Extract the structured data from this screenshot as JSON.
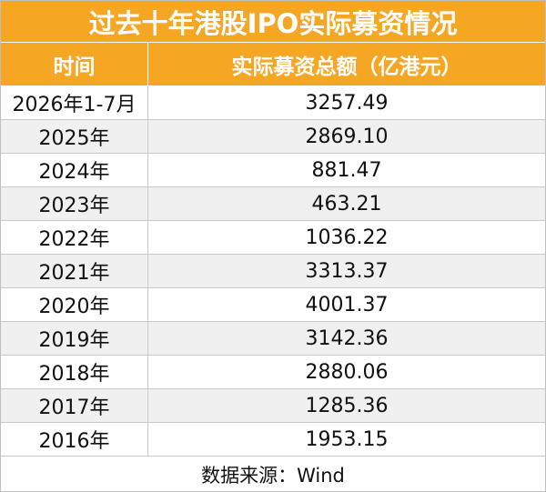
{
  "title": "过去十年港股IPO实际募资情况",
  "table": {
    "header": [
      "时间",
      "实际募资总额（亿港元）"
    ],
    "rows": [
      [
        "2026年1-7月",
        "3257.49"
      ],
      [
        "2025年",
        "2869.10"
      ],
      [
        "2024年",
        "881.47"
      ],
      [
        "2023年",
        "463.21"
      ],
      [
        "2022年",
        "1036.22"
      ],
      [
        "2021年",
        "3313.37"
      ],
      [
        "2020年",
        "4001.37"
      ],
      [
        "2019年",
        "3142.36"
      ],
      [
        "2018年",
        "2880.06"
      ],
      [
        "2017年",
        "1285.36"
      ],
      [
        "2016年",
        "1953.15"
      ]
    ]
  },
  "source": "数据来源：Wind"
}
